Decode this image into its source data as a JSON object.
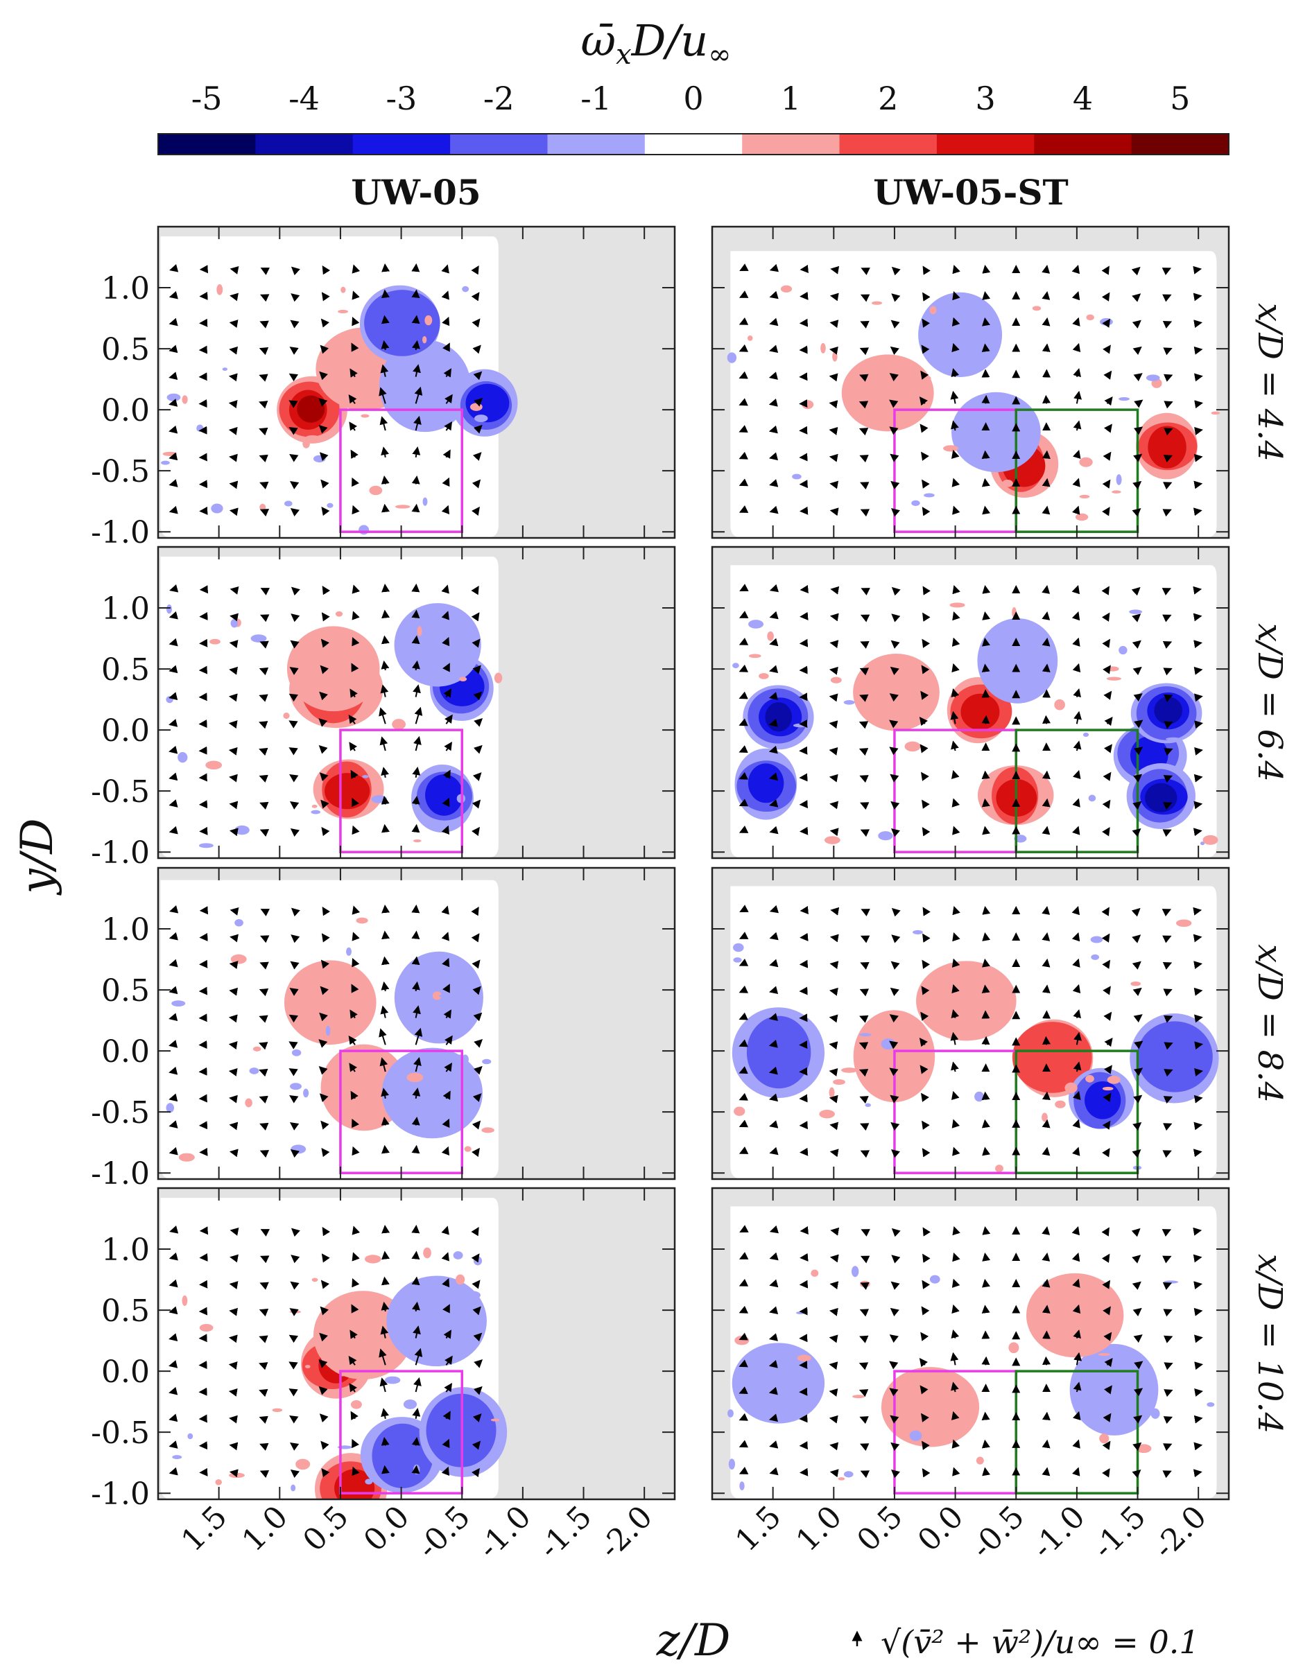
{
  "chart_data": {
    "type": "heatmap",
    "description_free": true,
    "colorbar": {
      "label_main": "ω̄",
      "label_sub": "x",
      "label_rest": "D/u",
      "label_inf": "∞",
      "ticks": [
        "-5",
        "-4",
        "-3",
        "-2",
        "-1",
        "0",
        "1",
        "2",
        "3",
        "4",
        "5"
      ],
      "bins": [
        -5.5,
        -4.5,
        -3.5,
        -2.5,
        -1.5,
        -0.5,
        0.5,
        1.5,
        2.5,
        3.5,
        4.5,
        5.5
      ],
      "colors": [
        "#00005e",
        "#0a0aa8",
        "#1515e6",
        "#5b5bf2",
        "#a4a4fb",
        "#ffffff",
        "#f9a2a2",
        "#f34848",
        "#d80f0f",
        "#a50000",
        "#6e0000"
      ]
    },
    "columns": [
      "UW-05",
      "UW-05-ST"
    ],
    "rows": [
      {
        "station": "x/D = 4.4",
        "x_over_D": 4.4
      },
      {
        "station": "x/D = 6.4",
        "x_over_D": 6.4
      },
      {
        "station": "x/D = 8.4",
        "x_over_D": 8.4
      },
      {
        "station": "x/D = 10.4",
        "x_over_D": 10.4
      }
    ],
    "xaxis": {
      "label": "z/D",
      "xlim": [
        2.0,
        -2.25
      ],
      "ticks": [
        "1.5",
        "1.0",
        "0.5",
        "0.0",
        "-0.5",
        "-1.0",
        "-1.5",
        "-2.0"
      ],
      "tick_values": [
        1.5,
        1.0,
        0.5,
        0.0,
        -0.5,
        -1.0,
        -1.5,
        -2.0
      ]
    },
    "yaxis": {
      "label": "y/D",
      "ylim": [
        -1.05,
        1.5
      ],
      "ticks": [
        "1.0",
        "0.5",
        "0.0",
        "-0.5",
        "-1.0"
      ],
      "tick_values": [
        1.0,
        0.5,
        0.0,
        -0.5,
        -1.0
      ]
    },
    "reference_vector": {
      "label": "√(v̄² + w̄²)/u∞ = 0.1",
      "magnitude": 0.1
    },
    "boxes": {
      "magenta": {
        "color": "#e83ce8",
        "z": [
          0.5,
          -0.5
        ],
        "y": [
          -1.0,
          0.0
        ]
      },
      "green": {
        "color": "#1f7d1f",
        "z": [
          -0.5,
          -1.5
        ],
        "y": [
          -1.0,
          0.0
        ]
      }
    },
    "vortices": {
      "UW-05": [
        [
          {
            "z": 0.75,
            "y": 0.0,
            "v": 4
          },
          {
            "z": 0.3,
            "y": 0.35,
            "v": 1
          },
          {
            "z": -0.2,
            "y": 0.2,
            "v": -1
          },
          {
            "z": -0.7,
            "y": 0.05,
            "v": -3
          },
          {
            "z": 0.0,
            "y": 0.7,
            "v": -2
          }
        ],
        [
          {
            "z": 0.45,
            "y": -0.5,
            "v": 3
          },
          {
            "z": -0.35,
            "y": -0.55,
            "v": -3
          },
          {
            "z": 0.55,
            "y": 0.35,
            "v": 2
          },
          {
            "z": -0.5,
            "y": 0.35,
            "v": -3
          },
          {
            "z": 0.55,
            "y": 0.5,
            "v": 1
          },
          {
            "z": -0.3,
            "y": 0.7,
            "v": -1
          }
        ],
        [
          {
            "z": 0.6,
            "y": 0.4,
            "v": 1
          },
          {
            "z": -0.3,
            "y": 0.45,
            "v": -1
          },
          {
            "z": 0.3,
            "y": -0.3,
            "v": 1
          },
          {
            "z": -0.25,
            "y": -0.35,
            "v": -1
          }
        ],
        [
          {
            "z": 0.55,
            "y": 0.05,
            "v": 3
          },
          {
            "z": 0.4,
            "y": -0.95,
            "v": 3
          },
          {
            "z": 0.0,
            "y": -0.7,
            "v": -2
          },
          {
            "z": -0.5,
            "y": -0.5,
            "v": -2
          },
          {
            "z": 0.3,
            "y": 0.3,
            "v": 1
          },
          {
            "z": -0.3,
            "y": 0.4,
            "v": -1
          }
        ]
      ],
      "UW-05-ST": [
        [
          {
            "z": 0.55,
            "y": 0.15,
            "v": 1
          },
          {
            "z": -0.55,
            "y": -0.45,
            "v": 3
          },
          {
            "z": -0.35,
            "y": -0.2,
            "v": -1
          },
          {
            "z": -1.75,
            "y": -0.3,
            "v": 3
          },
          {
            "z": -0.05,
            "y": 0.6,
            "v": -1
          }
        ],
        [
          {
            "z": 1.45,
            "y": 0.1,
            "v": -4
          },
          {
            "z": 1.55,
            "y": -0.45,
            "v": -3
          },
          {
            "z": -0.2,
            "y": 0.15,
            "v": 3
          },
          {
            "z": -0.5,
            "y": -0.55,
            "v": 3
          },
          {
            "z": -1.6,
            "y": -0.2,
            "v": -3
          },
          {
            "z": -1.75,
            "y": 0.15,
            "v": -4
          },
          {
            "z": -1.7,
            "y": -0.55,
            "v": -4
          },
          {
            "z": 0.5,
            "y": 0.3,
            "v": 1
          },
          {
            "z": -0.5,
            "y": 0.55,
            "v": -1
          }
        ],
        [
          {
            "z": 1.45,
            "y": 0.0,
            "v": -2
          },
          {
            "z": 0.5,
            "y": -0.05,
            "v": 1
          },
          {
            "z": -0.8,
            "y": -0.05,
            "v": 2
          },
          {
            "z": -1.2,
            "y": -0.4,
            "v": -3
          },
          {
            "z": -1.8,
            "y": -0.05,
            "v": -2
          },
          {
            "z": -0.1,
            "y": 0.4,
            "v": 1
          }
        ],
        [
          {
            "z": 1.45,
            "y": -0.1,
            "v": -1
          },
          {
            "z": -1.3,
            "y": -0.15,
            "v": -1
          },
          {
            "z": -1.0,
            "y": 0.45,
            "v": 1
          },
          {
            "z": 0.2,
            "y": -0.3,
            "v": 1
          }
        ]
      ]
    }
  }
}
